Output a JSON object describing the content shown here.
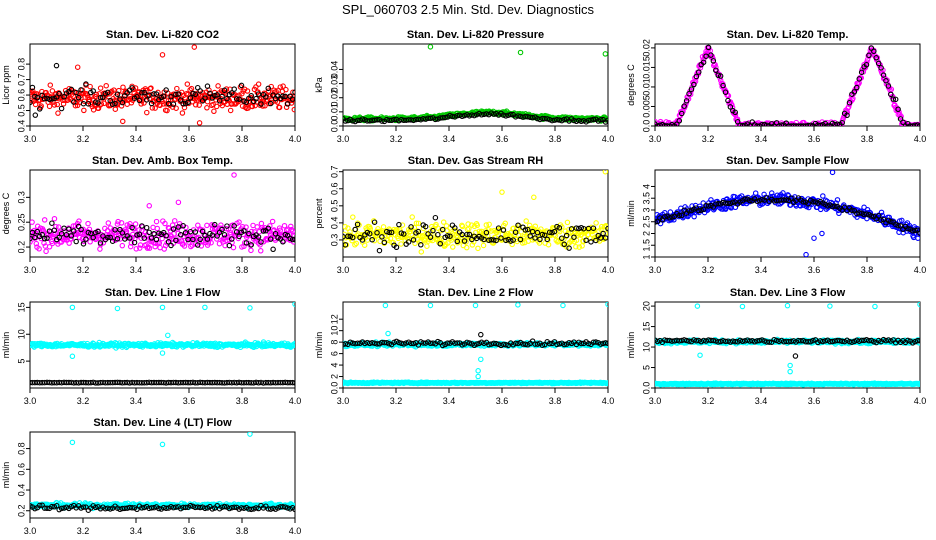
{
  "page_title": "SPL_060703  2.5 Min. Std. Dev. Diagnostics",
  "colors": {
    "black": "#000000",
    "red": "#ff0000",
    "green": "#00c800",
    "magenta": "#ff00ff",
    "yellow": "#ffff00",
    "blue": "#0000ff",
    "cyan": "#00ffff"
  },
  "chart_data": [
    {
      "type": "scatter",
      "title": "Stan. Dev. Li-820 CO2",
      "xlabel": "",
      "ylabel": "Licor ppm",
      "xlim": [
        3.0,
        4.0
      ],
      "ylim": [
        0.4,
        0.93
      ],
      "xticks": [
        3.0,
        3.2,
        3.4,
        3.6,
        3.8,
        4.0
      ],
      "yticks": [
        0.4,
        0.5,
        0.6,
        0.7,
        0.8
      ],
      "series": [
        {
          "name": "main",
          "color": "#ff0000",
          "pattern": "band",
          "center": 0.58,
          "spread": 0.07,
          "samples": [
            [
              3.35,
              0.43
            ],
            [
              3.64,
              0.42
            ],
            [
              3.5,
              0.86
            ],
            [
              3.62,
              0.91
            ],
            [
              3.18,
              0.78
            ]
          ]
        },
        {
          "name": "subsample",
          "color": "#000000",
          "pattern": "band",
          "center": 0.59,
          "spread": 0.06,
          "samples": [
            [
              3.02,
              0.47
            ],
            [
              3.1,
              0.79
            ]
          ]
        }
      ]
    },
    {
      "type": "scatter",
      "title": "Stan. Dev. Li-820 Pressure",
      "xlabel": "",
      "ylabel": "kPa",
      "xlim": [
        3.0,
        4.0
      ],
      "ylim": [
        0.0,
        0.058
      ],
      "xticks": [
        3.0,
        3.2,
        3.4,
        3.6,
        3.8,
        4.0
      ],
      "yticks": [
        0.0,
        0.01,
        0.02,
        0.03,
        0.04
      ],
      "series": [
        {
          "name": "main",
          "color": "#00c800",
          "pattern": "hump",
          "center": 0.005,
          "spread": 0.002,
          "samples": [
            [
              3.33,
              0.056
            ],
            [
              3.67,
              0.052
            ],
            [
              3.99,
              0.051
            ]
          ]
        },
        {
          "name": "subsample",
          "color": "#000000",
          "pattern": "hump",
          "center": 0.004,
          "spread": 0.0015,
          "samples": []
        }
      ]
    },
    {
      "type": "scatter",
      "title": "Stan. Dev. Li-820 Temp.",
      "xlabel": "",
      "ylabel": "degrees C",
      "xlim": [
        3.0,
        4.0
      ],
      "ylim": [
        0.0,
        0.021
      ],
      "xticks": [
        3.0,
        3.2,
        3.4,
        3.6,
        3.8,
        4.0
      ],
      "yticks": [
        0.0,
        0.005,
        0.01,
        0.015,
        0.02
      ],
      "series": [
        {
          "name": "main",
          "color": "#ff00ff",
          "pattern": "twopeaks",
          "center": 0.0,
          "spread": 0.001,
          "samples": []
        },
        {
          "name": "subsample",
          "color": "#000000",
          "pattern": "twopeaks",
          "center": 0.0,
          "spread": 0.001,
          "samples": []
        }
      ]
    },
    {
      "type": "scatter",
      "title": "Stan. Dev. Amb. Box Temp.",
      "xlabel": "",
      "ylabel": "degrees C",
      "xlim": [
        3.0,
        4.0
      ],
      "ylim": [
        0.18,
        0.355
      ],
      "xticks": [
        3.0,
        3.2,
        3.4,
        3.6,
        3.8,
        4.0
      ],
      "yticks": [
        0.2,
        0.25,
        0.3
      ],
      "series": [
        {
          "name": "main",
          "color": "#ff00ff",
          "pattern": "band",
          "center": 0.225,
          "spread": 0.025,
          "samples": [
            [
              3.77,
              0.345
            ],
            [
              3.45,
              0.283
            ],
            [
              3.56,
              0.29
            ]
          ]
        },
        {
          "name": "subsample",
          "color": "#000000",
          "pattern": "band",
          "center": 0.222,
          "spread": 0.02,
          "samples": []
        }
      ]
    },
    {
      "type": "scatter",
      "title": "Stan. Dev. Gas Stream RH",
      "xlabel": "",
      "ylabel": "percent",
      "xlim": [
        3.0,
        4.0
      ],
      "ylim": [
        0.2,
        0.71
      ],
      "xticks": [
        3.0,
        3.2,
        3.4,
        3.6,
        3.8,
        4.0
      ],
      "yticks": [
        0.3,
        0.4,
        0.5,
        0.6,
        0.7
      ],
      "series": [
        {
          "name": "main",
          "color": "#ffff00",
          "pattern": "band",
          "center": 0.33,
          "spread": 0.07,
          "samples": [
            [
              3.99,
              0.7
            ],
            [
              3.6,
              0.58
            ],
            [
              3.72,
              0.55
            ]
          ]
        },
        {
          "name": "subsample",
          "color": "#000000",
          "pattern": "band",
          "center": 0.33,
          "spread": 0.07,
          "samples": []
        }
      ]
    },
    {
      "type": "scatter",
      "title": "Stan. Dev. Sample Flow",
      "xlabel": "",
      "ylabel": "ml/min",
      "xlim": [
        3.0,
        4.0
      ],
      "ylim": [
        1.0,
        4.7
      ],
      "xticks": [
        3.0,
        3.2,
        3.4,
        3.6,
        3.8,
        4.0
      ],
      "yticks": [
        1.0,
        1.5,
        2.0,
        2.5,
        3.0,
        3.5,
        4.0
      ],
      "series": [
        {
          "name": "main",
          "color": "#0000ff",
          "pattern": "flow",
          "center": 2.9,
          "spread": 0.25,
          "samples": [
            [
              3.67,
              4.6
            ],
            [
              3.57,
              1.1
            ],
            [
              3.6,
              1.8
            ],
            [
              3.63,
              2.0
            ]
          ]
        },
        {
          "name": "subsample",
          "color": "#000000",
          "pattern": "flow",
          "center": 2.9,
          "spread": 0.1,
          "samples": []
        }
      ]
    },
    {
      "type": "scatter",
      "title": "Stan. Dev. Line 1 Flow",
      "xlabel": "",
      "ylabel": "ml/min",
      "xlim": [
        3.0,
        4.0
      ],
      "ylim": [
        0.0,
        16.0
      ],
      "xticks": [
        3.0,
        3.2,
        3.4,
        3.6,
        3.8,
        4.0
      ],
      "yticks": [
        5,
        10,
        15
      ],
      "series": [
        {
          "name": "main",
          "color": "#00ffff",
          "pattern": "band",
          "center": 8.0,
          "spread": 0.35,
          "samples": [
            [
              3.16,
              15.0
            ],
            [
              3.33,
              14.8
            ],
            [
              3.5,
              15.0
            ],
            [
              3.66,
              15.0
            ],
            [
              3.83,
              14.9
            ],
            [
              4.0,
              15.6
            ],
            [
              3.16,
              5.9
            ],
            [
              3.5,
              6.5
            ],
            [
              3.52,
              9.8
            ]
          ]
        },
        {
          "name": "subsample",
          "color": "#000000",
          "pattern": "band",
          "center": 1.0,
          "spread": 0.05,
          "samples": []
        }
      ]
    },
    {
      "type": "scatter",
      "title": "Stan. Dev. Line 2 Flow",
      "xlabel": "",
      "ylabel": "ml/min",
      "xlim": [
        3.0,
        4.0
      ],
      "ylim": [
        0.0,
        15.0
      ],
      "xticks": [
        3.0,
        3.2,
        3.4,
        3.6,
        3.8,
        4.0
      ],
      "yticks": [
        0,
        2,
        4,
        6,
        8,
        10,
        12
      ],
      "series": [
        {
          "name": "main",
          "color": "#00ffff",
          "pattern": "band",
          "center": 7.6,
          "spread": 0.3,
          "samples": [
            [
              3.16,
              14.4
            ],
            [
              3.33,
              14.4
            ],
            [
              3.5,
              14.4
            ],
            [
              3.66,
              14.5
            ],
            [
              3.83,
              14.4
            ],
            [
              4.0,
              14.6
            ],
            [
              3.17,
              9.5
            ],
            [
              3.51,
              3.0
            ],
            [
              3.51,
              2.0
            ],
            [
              3.52,
              5.0
            ]
          ]
        },
        {
          "name": "main-low",
          "color": "#00ffff",
          "pattern": "band",
          "center": 0.9,
          "spread": 0.1,
          "samples": []
        },
        {
          "name": "subsample",
          "color": "#000000",
          "pattern": "band",
          "center": 7.8,
          "spread": 0.3,
          "samples": [
            [
              3.52,
              9.3
            ]
          ]
        }
      ]
    },
    {
      "type": "scatter",
      "title": "Stan. Dev. Line 3 Flow",
      "xlabel": "",
      "ylabel": "ml/min",
      "xlim": [
        3.0,
        4.0
      ],
      "ylim": [
        0.0,
        21.0
      ],
      "xticks": [
        3.0,
        3.2,
        3.4,
        3.6,
        3.8,
        4.0
      ],
      "yticks": [
        0,
        5,
        10,
        15,
        20
      ],
      "series": [
        {
          "name": "main",
          "color": "#00ffff",
          "pattern": "band",
          "center": 11.3,
          "spread": 0.4,
          "samples": [
            [
              3.16,
              20.0
            ],
            [
              3.33,
              19.9
            ],
            [
              3.5,
              20.1
            ],
            [
              3.66,
              20.0
            ],
            [
              3.83,
              19.9
            ],
            [
              4.0,
              20.4
            ],
            [
              3.51,
              4.0
            ],
            [
              3.51,
              5.5
            ],
            [
              3.17,
              8.0
            ]
          ]
        },
        {
          "name": "main-low",
          "color": "#00ffff",
          "pattern": "band",
          "center": 1.0,
          "spread": 0.15,
          "samples": []
        },
        {
          "name": "subsample",
          "color": "#000000",
          "pattern": "band",
          "center": 11.5,
          "spread": 0.35,
          "samples": [
            [
              3.53,
              7.8
            ]
          ]
        }
      ]
    },
    {
      "type": "scatter",
      "title": "Stan. Dev. Line 4 (LT) Flow",
      "xlabel": "",
      "ylabel": "ml/min",
      "xlim": [
        3.0,
        4.0
      ],
      "ylim": [
        0.13,
        0.96
      ],
      "xticks": [
        3.0,
        3.2,
        3.4,
        3.6,
        3.8,
        4.0
      ],
      "yticks": [
        0.2,
        0.4,
        0.6,
        0.8
      ],
      "series": [
        {
          "name": "main",
          "color": "#00ffff",
          "pattern": "band",
          "center": 0.25,
          "spread": 0.02,
          "samples": [
            [
              3.16,
              0.86
            ],
            [
              3.5,
              0.84
            ],
            [
              3.83,
              0.94
            ]
          ]
        },
        {
          "name": "subsample",
          "color": "#000000",
          "pattern": "band",
          "center": 0.23,
          "spread": 0.02,
          "samples": []
        }
      ]
    }
  ]
}
